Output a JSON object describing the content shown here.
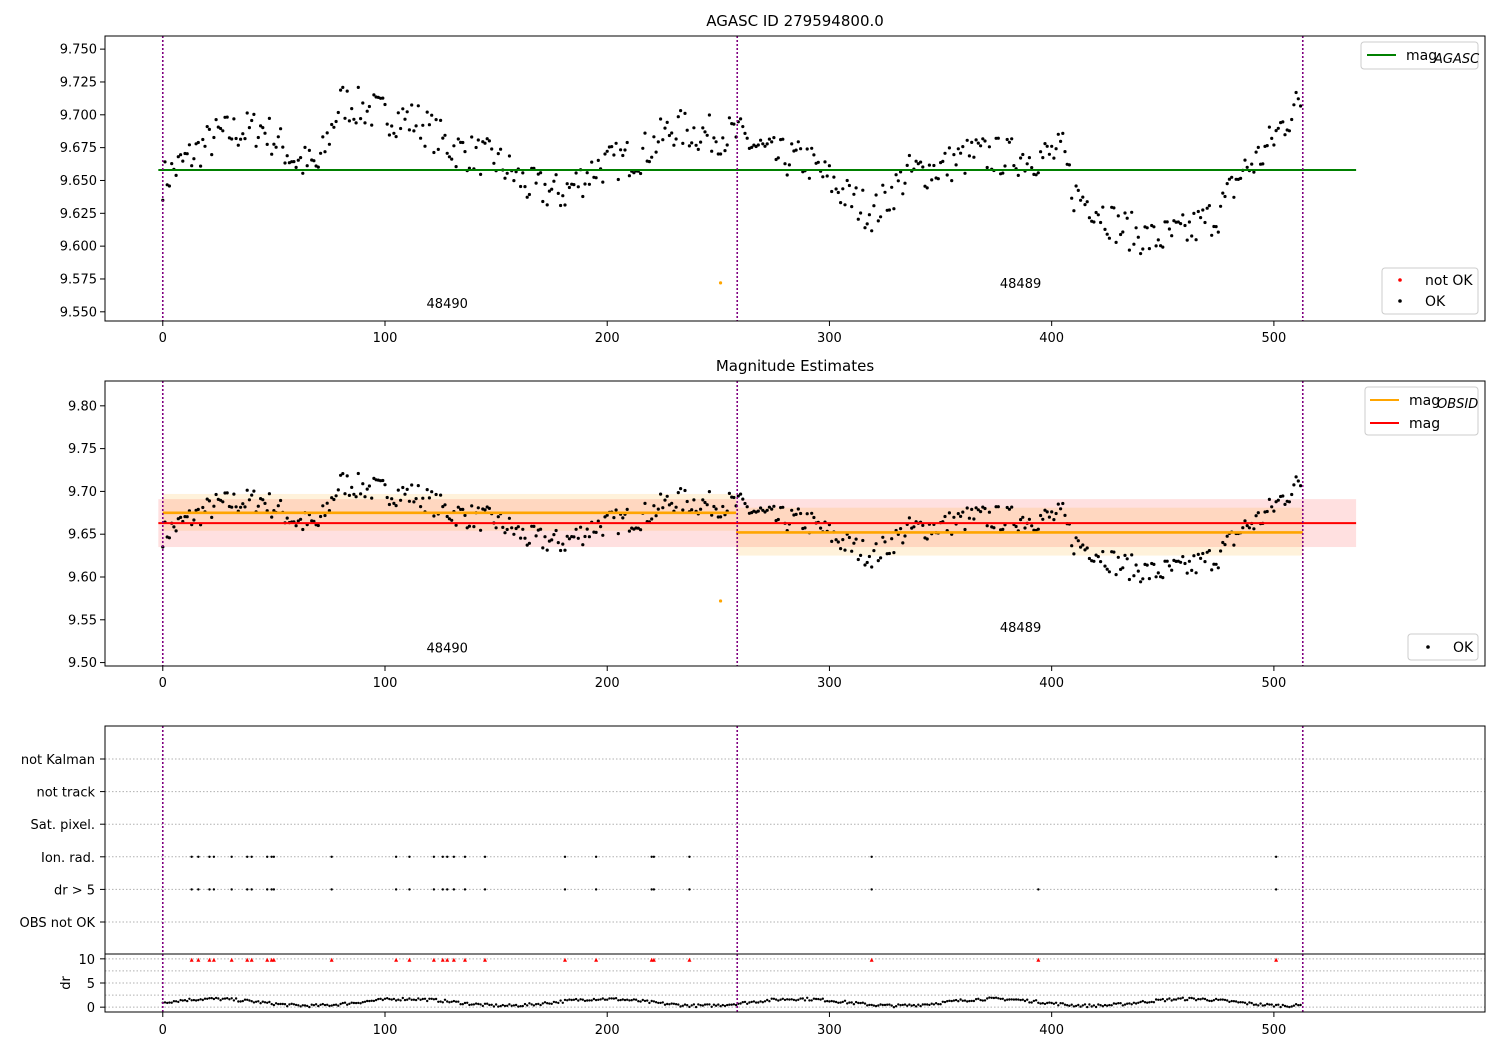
{
  "chart_data": [
    {
      "type": "scatter",
      "title": "AGASC ID 279594800.0",
      "xlim": [
        -26,
        595
      ],
      "ylim": [
        9.543,
        9.76
      ],
      "xticks": [
        0,
        100,
        200,
        300,
        400,
        500
      ],
      "yticks": [
        "9.550",
        "9.575",
        "9.600",
        "9.625",
        "9.650",
        "9.675",
        "9.700",
        "9.725",
        "9.750"
      ],
      "obs_boundaries": [
        0,
        258.5,
        513
      ],
      "obsid_labels": [
        {
          "text": "48490",
          "x": 128,
          "y": 9.553
        },
        {
          "text": "48489",
          "x": 386,
          "y": 9.568
        }
      ],
      "hlines": [
        {
          "name": "mag_AGASC",
          "y": 9.658,
          "x": [
            -2,
            537
          ],
          "color": "#008000"
        }
      ],
      "not_ok_points": [
        {
          "x": 251,
          "y": 9.572
        }
      ],
      "legend_lines": [
        {
          "label": "mag",
          "sub": "AGASC",
          "color": "#008000"
        }
      ],
      "legend_points": [
        {
          "label": "not OK",
          "color": "#ff0000"
        },
        {
          "label": "OK",
          "color": "#000000"
        }
      ],
      "series_note": "OK points: black dots (mag vs index)"
    },
    {
      "type": "scatter",
      "title": "Magnitude Estimates",
      "xlim": [
        -26,
        595
      ],
      "ylim": [
        9.496,
        9.829
      ],
      "xticks": [
        0,
        100,
        200,
        300,
        400,
        500
      ],
      "yticks": [
        "9.50",
        "9.55",
        "9.60",
        "9.65",
        "9.70",
        "9.75",
        "9.80"
      ],
      "obs_boundaries": [
        0,
        258.5,
        513
      ],
      "obsid_labels": [
        {
          "text": "48490",
          "x": 128,
          "y": 9.512
        },
        {
          "text": "48489",
          "x": 386,
          "y": 9.536
        }
      ],
      "mag": {
        "y": 9.663,
        "x": [
          -2,
          537
        ],
        "band": [
          9.635,
          9.691
        ],
        "color": "#ff0000"
      },
      "mag_obsid": [
        {
          "x": [
            0,
            258
          ],
          "y": 9.675,
          "band": [
            9.654,
            9.697
          ]
        },
        {
          "x": [
            258,
            513
          ],
          "y": 9.652,
          "band": [
            9.625,
            9.681
          ]
        }
      ],
      "not_ok_points": [
        {
          "x": 251,
          "y": 9.572
        }
      ],
      "legend_lines": [
        {
          "label": "mag",
          "sub": "OBSID",
          "color": "#ffa500"
        },
        {
          "label": "mag",
          "sub": "",
          "color": "#ff0000"
        }
      ],
      "legend_points": [
        {
          "label": "OK",
          "color": "#000000"
        }
      ]
    },
    {
      "type": "scatter",
      "title": "",
      "xlim": [
        -26,
        595
      ],
      "categories": [
        "not Kalman",
        "not track",
        "Sat. pixel.",
        "Ion. rad.",
        "dr > 5",
        "OBS not OK"
      ],
      "flag_x": {
        "Ion. rad.": [
          13,
          16,
          21,
          23,
          31,
          38,
          40,
          47,
          49,
          50,
          76,
          105,
          111,
          122,
          126,
          128,
          131,
          136,
          145,
          181,
          195,
          220,
          221,
          237,
          319,
          501
        ],
        "dr > 5": [
          13,
          16,
          21,
          23,
          31,
          38,
          40,
          47,
          49,
          50,
          76,
          105,
          111,
          122,
          126,
          128,
          131,
          136,
          145,
          181,
          195,
          220,
          221,
          237,
          319,
          394,
          501
        ]
      }
    },
    {
      "type": "scatter",
      "ylabel": "dr",
      "ylim": [
        -1,
        11
      ],
      "yticks": [
        "0",
        "5",
        "10"
      ],
      "xticks": [
        0,
        100,
        200,
        300,
        400,
        500
      ],
      "red_marker_y": 9.8,
      "red_marker_x": [
        13,
        16,
        21,
        23,
        31,
        38,
        40,
        47,
        49,
        50,
        76,
        105,
        111,
        122,
        126,
        128,
        131,
        136,
        145,
        181,
        195,
        220,
        221,
        237,
        319,
        394,
        501
      ]
    }
  ],
  "colors": {
    "ok": "#000000",
    "not_ok": "#ff0000",
    "suspect": "#ffa500",
    "agasc": "#008000",
    "boundary": "#800080",
    "grid": "#b0b0b0"
  }
}
